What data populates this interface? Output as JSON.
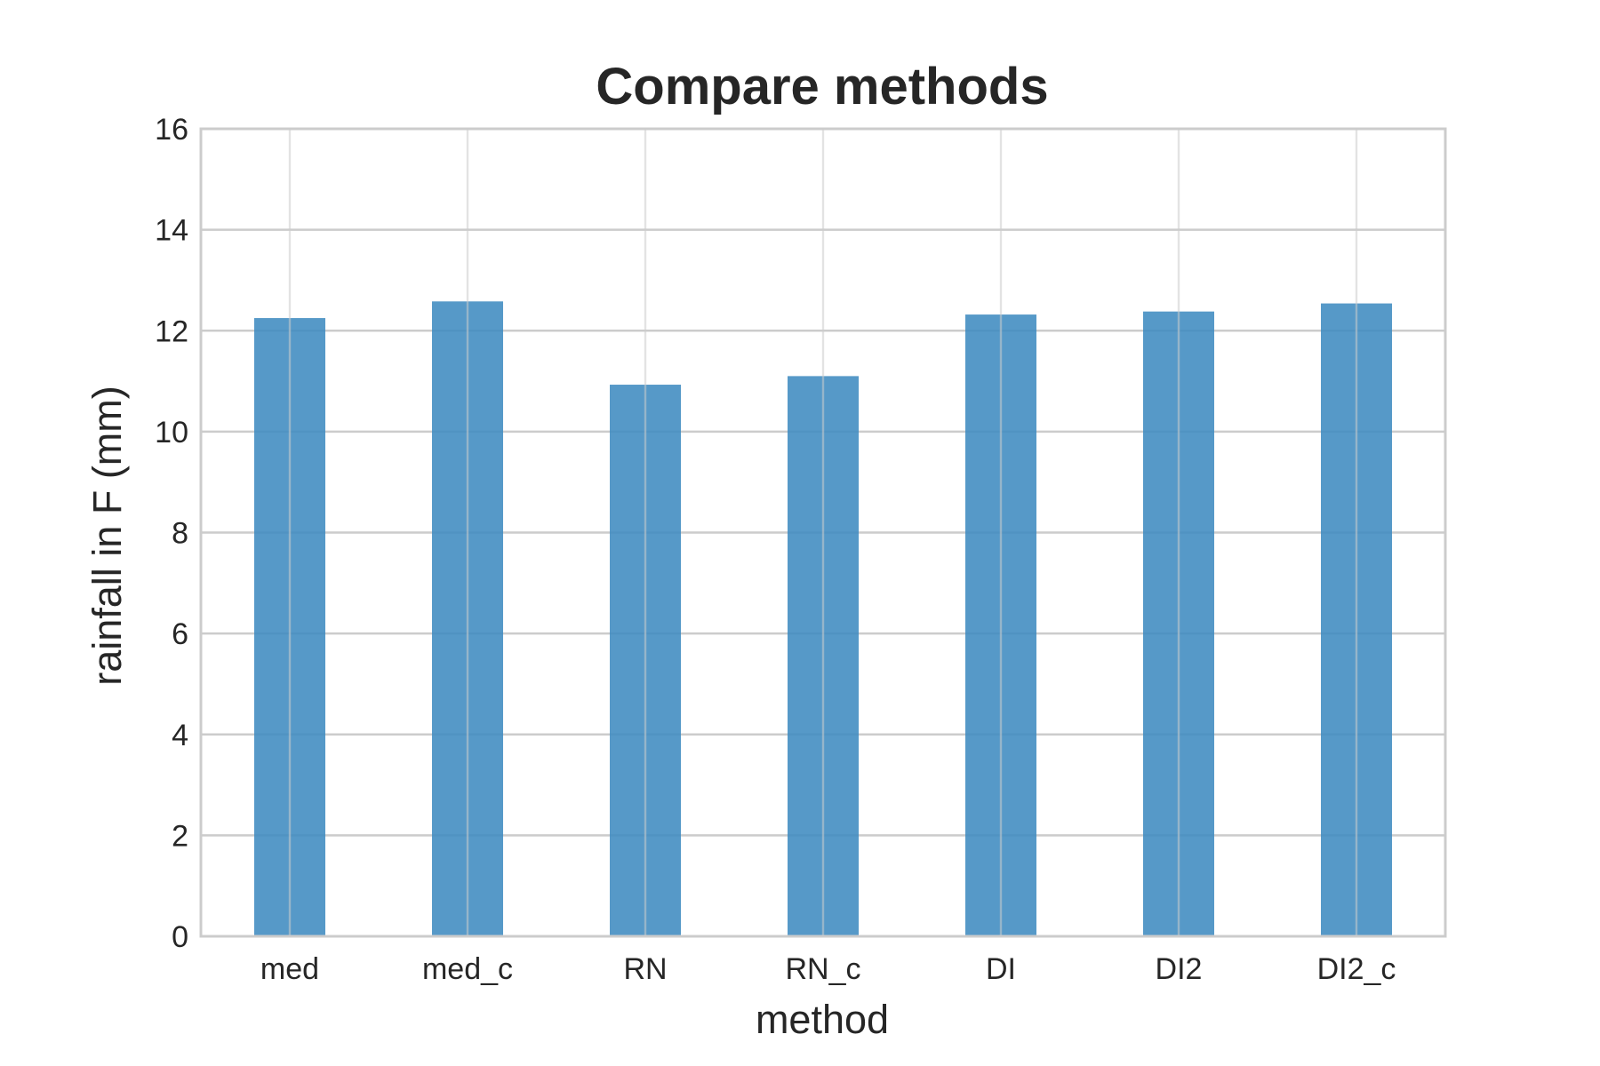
{
  "chart_data": {
    "type": "bar",
    "title": "Compare methods",
    "xlabel": "method",
    "ylabel": "rainfall in F (mm)",
    "categories": [
      "med",
      "med_c",
      "RN",
      "RN_c",
      "DI",
      "DI2",
      "DI2_c"
    ],
    "values": [
      12.25,
      12.58,
      10.93,
      11.1,
      12.32,
      12.38,
      12.54
    ],
    "ylim": [
      0,
      16
    ],
    "yticks": [
      0,
      2,
      4,
      6,
      8,
      10,
      12,
      14,
      16
    ],
    "ytick_labels": [
      "0",
      "2",
      "4",
      "6",
      "8",
      "10",
      "12",
      "14",
      "16"
    ],
    "grid": true,
    "legend": "none",
    "colors": {
      "bar": "#3f8bc0",
      "grid": "#cccccc",
      "text": "#262626",
      "spine": "#cccccc"
    }
  }
}
